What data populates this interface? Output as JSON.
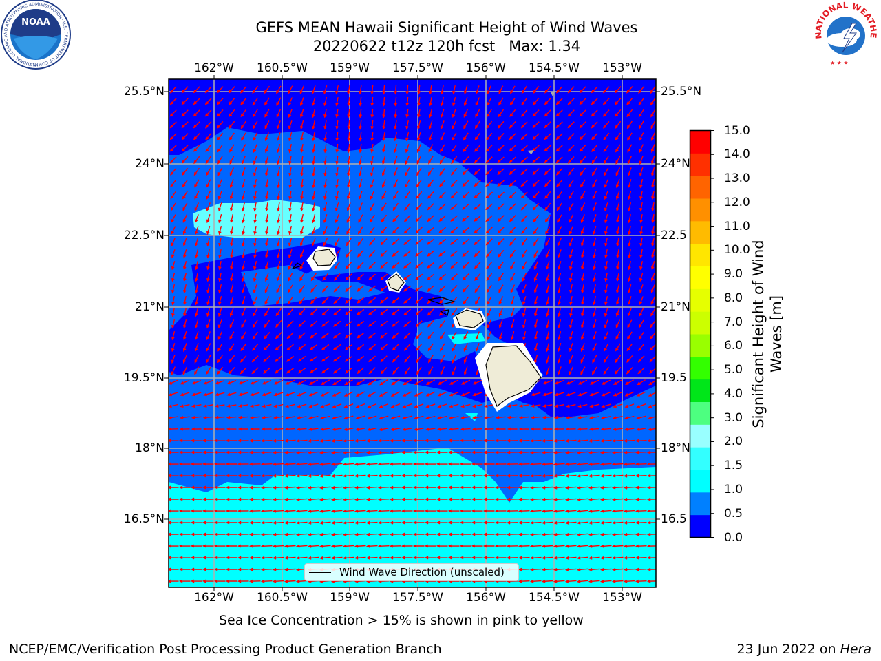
{
  "title": {
    "line1": "GEFS MEAN Hawaii Significant Height of Wind Waves",
    "line2": "20220622 t12z 120h fcst   Max: 1.34"
  },
  "map": {
    "lon_labels": [
      "162°W",
      "160.5°W",
      "159°W",
      "157.5°W",
      "156°W",
      "154.5°W",
      "153°W"
    ],
    "lat_labels_left": [
      "25.5°N",
      "24°N",
      "22.5°N",
      "21°N",
      "19.5°N",
      "18°N",
      "16.5°N"
    ],
    "lat_labels_right": [
      "25.5°N",
      "24°N",
      "22.5",
      "21°N",
      "19.5",
      "18°N",
      "16.5"
    ],
    "legend_label": "Wind Wave Direction (unscaled)",
    "colors": {
      "ocean_low": "#0000ff",
      "ocean_mid": "#0066ff",
      "ocean_high": "#00ffff",
      "ocean_light": "#66ffff",
      "land": "#efecd7",
      "arrow": "#ff0000",
      "grid": "#b0b0b0"
    }
  },
  "colorbar": {
    "title_line1": "Significant Height of Wind",
    "title_line2": "Waves [m]",
    "tick_labels": [
      "15.0",
      "14.0",
      "13.0",
      "12.0",
      "11.0",
      "10.0",
      "9.0",
      "8.0",
      "7.0",
      "6.0",
      "5.0",
      "4.0",
      "3.0",
      "2.0",
      "1.5",
      "1.0",
      "0.5",
      "0.0"
    ],
    "colors": [
      "#0000ff",
      "#0080ff",
      "#00ffff",
      "#33ffff",
      "#99ffff",
      "#4dff80",
      "#00e619",
      "#33ff00",
      "#99ff00",
      "#ccff00",
      "#e6ff00",
      "#ffff00",
      "#ffe600",
      "#ffbb00",
      "#ff9000",
      "#ff6400",
      "#ff3000",
      "#ff0000"
    ]
  },
  "footnote": "Sea Ice Concentration > 15% is shown in pink to yellow",
  "footer": {
    "left": "NCEP/EMC/Verification Post Processing Product Generation Branch",
    "right_prefix": "23 Jun 2022 on ",
    "right_host": "Hera"
  },
  "logos": {
    "noaa_text": "NOAA",
    "noaa_ring": "NATIONAL OCEANIC AND ATMOSPHERIC ADMINISTRATION · U.S. DEPARTMENT OF COMMERCE",
    "nws_ring": "NATIONAL WEATHER SERVICE"
  }
}
